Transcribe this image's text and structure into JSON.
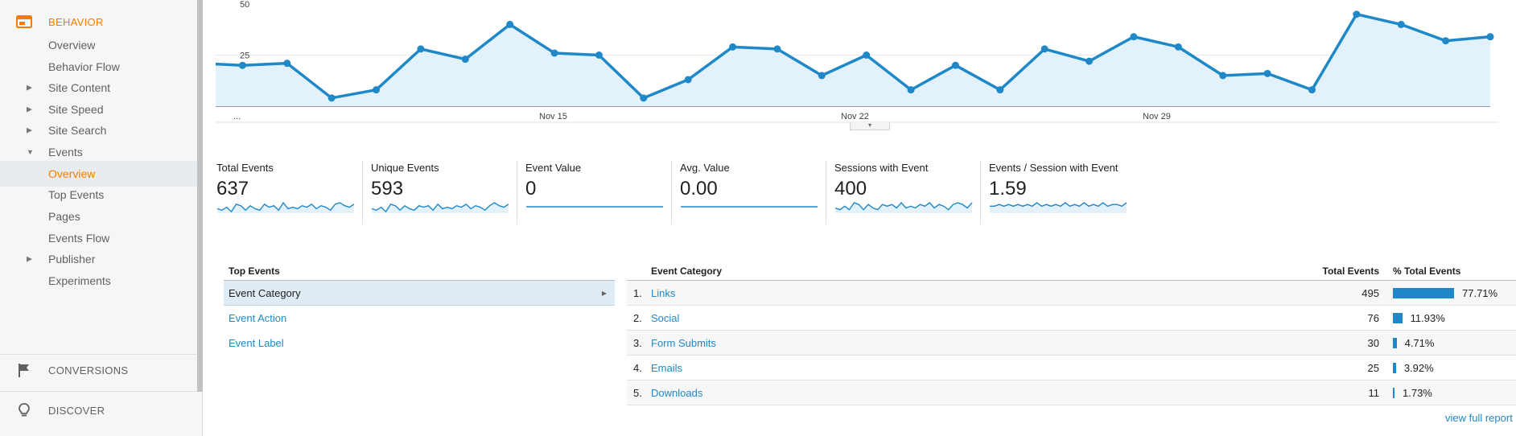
{
  "sidebar": {
    "behavior_label": "BEHAVIOR",
    "items": [
      {
        "label": "Overview",
        "caret": "",
        "active": false
      },
      {
        "label": "Behavior Flow",
        "caret": "",
        "active": false
      },
      {
        "label": "Site Content",
        "caret": "▶",
        "active": false
      },
      {
        "label": "Site Speed",
        "caret": "▶",
        "active": false
      },
      {
        "label": "Site Search",
        "caret": "▶",
        "active": false
      },
      {
        "label": "Events",
        "caret": "▼",
        "active": false
      },
      {
        "label": "Overview",
        "caret": "",
        "active": true
      },
      {
        "label": "Top Events",
        "caret": "",
        "active": false
      },
      {
        "label": "Pages",
        "caret": "",
        "active": false
      },
      {
        "label": "Events Flow",
        "caret": "",
        "active": false
      },
      {
        "label": "Publisher",
        "caret": "▶",
        "active": false
      },
      {
        "label": "Experiments",
        "caret": "",
        "active": false
      }
    ],
    "conversions_label": "CONVERSIONS",
    "discover_label": "DISCOVER",
    "icons": {
      "behavior": "behavior-icon",
      "conversions": "flag-icon",
      "discover": "lightbulb-icon"
    },
    "accent_color": "#f57c00"
  },
  "chart_data": {
    "type": "area",
    "y_ticks": [
      "50",
      "25"
    ],
    "ylim": [
      0,
      50
    ],
    "x_ticks": [
      "...",
      "Nov 15",
      "Nov 22",
      "Nov 29"
    ],
    "values": [
      21,
      20,
      21,
      4,
      8,
      28,
      23,
      40,
      26,
      25,
      4,
      13,
      29,
      28,
      15,
      25,
      8,
      20,
      8,
      28,
      22,
      34,
      29,
      15,
      16,
      8,
      45,
      40,
      32,
      34
    ],
    "line_color": "#1e88c9",
    "fill_color": "#e3f1fa",
    "grid": true
  },
  "metrics": [
    {
      "label": "Total Events",
      "value": "637",
      "spark": [
        3,
        2,
        4,
        1,
        6,
        5,
        2,
        5,
        3,
        2,
        6,
        4,
        5,
        2,
        7,
        3,
        4,
        3,
        5,
        4,
        6,
        3,
        5,
        4,
        2,
        6,
        7,
        5,
        4,
        6
      ]
    },
    {
      "label": "Unique Events",
      "value": "593",
      "spark": [
        3,
        2,
        4,
        1,
        6,
        5,
        2,
        5,
        3,
        2,
        5,
        4,
        5,
        2,
        6,
        3,
        4,
        3,
        5,
        4,
        6,
        3,
        5,
        4,
        2,
        5,
        7,
        5,
        4,
        6
      ]
    },
    {
      "label": "Event Value",
      "value": "0",
      "spark": [
        0,
        0,
        0,
        0,
        0,
        0,
        0,
        0,
        0,
        0,
        0,
        0,
        0,
        0,
        0,
        0,
        0,
        0,
        0,
        0,
        0,
        0,
        0,
        0,
        0,
        0,
        0,
        0,
        0,
        0
      ]
    },
    {
      "label": "Avg. Value",
      "value": "0.00",
      "spark": [
        0,
        0,
        0,
        0,
        0,
        0,
        0,
        0,
        0,
        0,
        0,
        0,
        0,
        0,
        0,
        0,
        0,
        0,
        0,
        0,
        0,
        0,
        0,
        0,
        0,
        0,
        0,
        0,
        0,
        0
      ]
    },
    {
      "label": "Sessions with Event",
      "value": "400",
      "spark": [
        3,
        2,
        4,
        2,
        6,
        5,
        2,
        5,
        3,
        2,
        5,
        4,
        5,
        3,
        6,
        3,
        4,
        3,
        5,
        4,
        6,
        3,
        5,
        4,
        2,
        5,
        6,
        5,
        3,
        6
      ]
    },
    {
      "label": "Events / Session with Event",
      "value": "1.59",
      "spark": [
        4,
        4,
        5,
        4,
        5,
        4,
        5,
        4,
        5,
        4,
        6,
        4,
        5,
        4,
        5,
        4,
        6,
        4,
        5,
        4,
        6,
        4,
        5,
        4,
        6,
        4,
        5,
        5,
        4,
        6
      ]
    }
  ],
  "top_events": {
    "header": "Top Events",
    "rows": [
      "Event Category",
      "Event Action",
      "Event Label"
    ],
    "arrow": "▶"
  },
  "event_table": {
    "headers": {
      "category": "Event Category",
      "total": "Total Events",
      "pct": "% Total Events"
    },
    "rows": [
      {
        "idx": "1.",
        "name": "Links",
        "total": "495",
        "pct": "77.71%",
        "share": 0.7771
      },
      {
        "idx": "2.",
        "name": "Social",
        "total": "76",
        "pct": "11.93%",
        "share": 0.1193
      },
      {
        "idx": "3.",
        "name": "Form Submits",
        "total": "30",
        "pct": "4.71%",
        "share": 0.0471
      },
      {
        "idx": "4.",
        "name": "Emails",
        "total": "25",
        "pct": "3.92%",
        "share": 0.0392
      },
      {
        "idx": "5.",
        "name": "Downloads",
        "total": "11",
        "pct": "1.73%",
        "share": 0.0173
      }
    ],
    "bar_color": "#1e88c9"
  },
  "view_full_report": "view full report"
}
